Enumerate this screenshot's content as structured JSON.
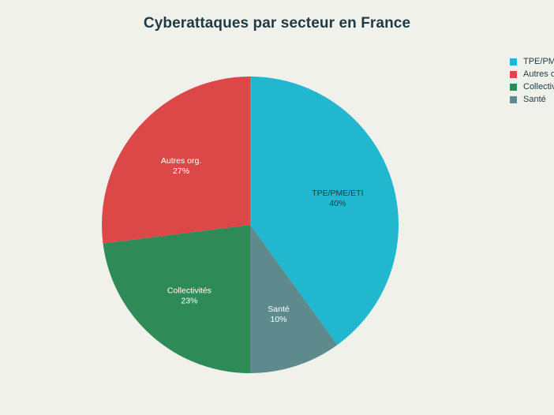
{
  "chart_data": {
    "type": "pie",
    "title": "Cyberattaques par secteur en France",
    "slices": [
      {
        "label": "TPE/PME/ETI",
        "value": 40,
        "value_label": "40%",
        "color": "#21b8cf"
      },
      {
        "label": "Santé",
        "value": 10,
        "value_label": "10%",
        "color": "#5e8a8e"
      },
      {
        "label": "Collectivités",
        "value": 23,
        "value_label": "23%",
        "color": "#2e8b57"
      },
      {
        "label": "Autres org.",
        "value": 27,
        "value_label": "27%",
        "color": "#dc4848"
      }
    ],
    "legend": {
      "placement": "top-right",
      "entries": [
        "TPE/PME/ETI",
        "Autres org.",
        "Collectivités",
        "Santé"
      ]
    }
  }
}
